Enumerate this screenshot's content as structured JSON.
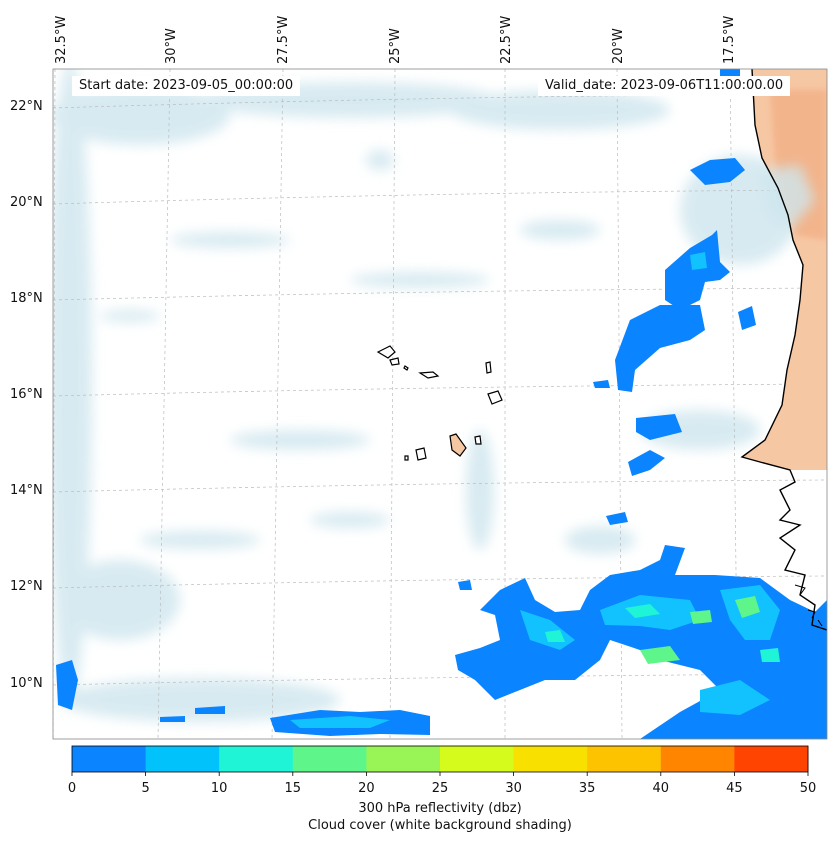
{
  "map": {
    "lon_labels": [
      "32.5°W",
      "30°W",
      "27.5°W",
      "25°W",
      "22.5°W",
      "20°W",
      "17.5°W"
    ],
    "lat_labels": [
      "22°N",
      "20°N",
      "18°N",
      "16°N",
      "14°N",
      "12°N",
      "10°N"
    ],
    "start_date": "Start date: 2023-09-05_00:00:00",
    "valid_date": "Valid_date: 2023-09-06T11:00:00.00",
    "colors": {
      "reflectivity_low": "#0a84ff",
      "reflectivity_mid": "#12c2ff",
      "reflectivity_high": "#7df27d",
      "cloud": "#cfe6ee",
      "land": "#f6c7a3",
      "coastline": "#000000",
      "grid": "#bbbbbb"
    }
  },
  "colorbar": {
    "ticks": [
      "0",
      "5",
      "10",
      "15",
      "20",
      "25",
      "30",
      "35",
      "40",
      "45",
      "50"
    ],
    "colors": [
      "#0a84ff",
      "#02c2fb",
      "#1ff5d6",
      "#5ef58a",
      "#98f555",
      "#d4fb1b",
      "#f8e000",
      "#fec300",
      "#ff8500",
      "#ff4300"
    ],
    "label": "300 hPa reflectivity (dbz)",
    "sublabel": "Cloud cover (white background shading)"
  }
}
